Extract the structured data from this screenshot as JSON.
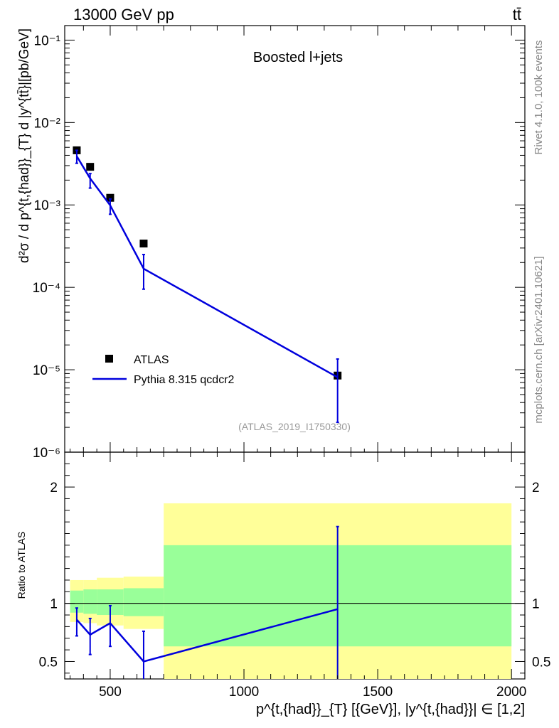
{
  "header": {
    "left": "13000 GeV pp",
    "right": "tt̄"
  },
  "side_labels": {
    "rivet": "Rivet 4.1.0,  100k events",
    "mcplots": "mcplots.cern.ch [arXiv:2401.10621]"
  },
  "chart_data": [
    {
      "type": "scatter",
      "panel": "main",
      "title": "Boosted l+jets",
      "ylabel": "d²σ / d p^{t,{had}}_{T} d |y^{tt̄}|[pb/GeV]",
      "yscale": "log",
      "ylim": [
        1e-06,
        0.15
      ],
      "xlim": [
        330,
        2050
      ],
      "y_ticks": [
        {
          "value": 0.1,
          "label": "10⁻¹"
        },
        {
          "value": 0.01,
          "label": "10⁻²"
        },
        {
          "value": 0.001,
          "label": "10⁻³"
        },
        {
          "value": 0.0001,
          "label": "10⁻⁴"
        },
        {
          "value": 1e-05,
          "label": "10⁻⁵"
        },
        {
          "value": 1e-06,
          "label": "10⁻⁶"
        }
      ],
      "legend_position": "bottom-left",
      "annotation": "(ATLAS_2019_I1750330)",
      "series": [
        {
          "name": "ATLAS",
          "style": "marker",
          "color": "#000000",
          "x": [
            375,
            425,
            500,
            625,
            1350
          ],
          "y": [
            0.0046,
            0.0029,
            0.00122,
            0.00034,
            8.5e-06
          ]
        },
        {
          "name": "Pythia 8.315 qcdcr2",
          "style": "line",
          "color": "#0000dd",
          "x": [
            375,
            425,
            500,
            625,
            1350
          ],
          "y": [
            0.0039,
            0.0021,
            0.00099,
            0.000168,
            8.1e-06
          ],
          "err_low": [
            0.0032,
            0.0016,
            0.00077,
            9.5e-05,
            2.3e-06
          ],
          "err_high": [
            0.0046,
            0.0024,
            0.00118,
            0.00025,
            1.35e-05
          ]
        }
      ]
    },
    {
      "type": "line",
      "panel": "ratio",
      "ylabel": "Ratio to ATLAS",
      "ylim": [
        0.35,
        2.3
      ],
      "xlim": [
        330,
        2050
      ],
      "y_ticks": [
        {
          "value": 0.5,
          "label": "0.5"
        },
        {
          "value": 1,
          "label": "1"
        },
        {
          "value": 2,
          "label": "2"
        }
      ],
      "x_ticks": [
        {
          "value": 500,
          "label": "500"
        },
        {
          "value": 1000,
          "label": "1000"
        },
        {
          "value": 1500,
          "label": "1500"
        },
        {
          "value": 2000,
          "label": "2000"
        }
      ],
      "xlabel": "p^{t,{had}}_{T} [{GeV}], |y^{t,{had}}| ∈ [1,2]",
      "reference_line": 1,
      "bands": {
        "bins": [
          [
            350,
            400
          ],
          [
            400,
            450
          ],
          [
            450,
            550
          ],
          [
            550,
            700
          ],
          [
            700,
            2000
          ]
        ],
        "yellow": [
          [
            0.84,
            1.2
          ],
          [
            0.83,
            1.2
          ],
          [
            0.81,
            1.22
          ],
          [
            0.78,
            1.23
          ],
          [
            0.35,
            1.86
          ]
        ],
        "green": [
          [
            0.92,
            1.11
          ],
          [
            0.91,
            1.12
          ],
          [
            0.9,
            1.12
          ],
          [
            0.89,
            1.13
          ],
          [
            0.63,
            1.5
          ]
        ]
      },
      "series": [
        {
          "name": "Pythia 8.315 qcdcr2",
          "color": "#0000dd",
          "x": [
            375,
            425,
            500,
            625,
            1350
          ],
          "y": [
            0.86,
            0.73,
            0.83,
            0.5,
            0.95
          ],
          "err_low": [
            0.72,
            0.56,
            0.63,
            0.28,
            0.2
          ],
          "err_high": [
            0.96,
            0.87,
            0.98,
            0.76,
            1.66
          ]
        }
      ]
    }
  ]
}
